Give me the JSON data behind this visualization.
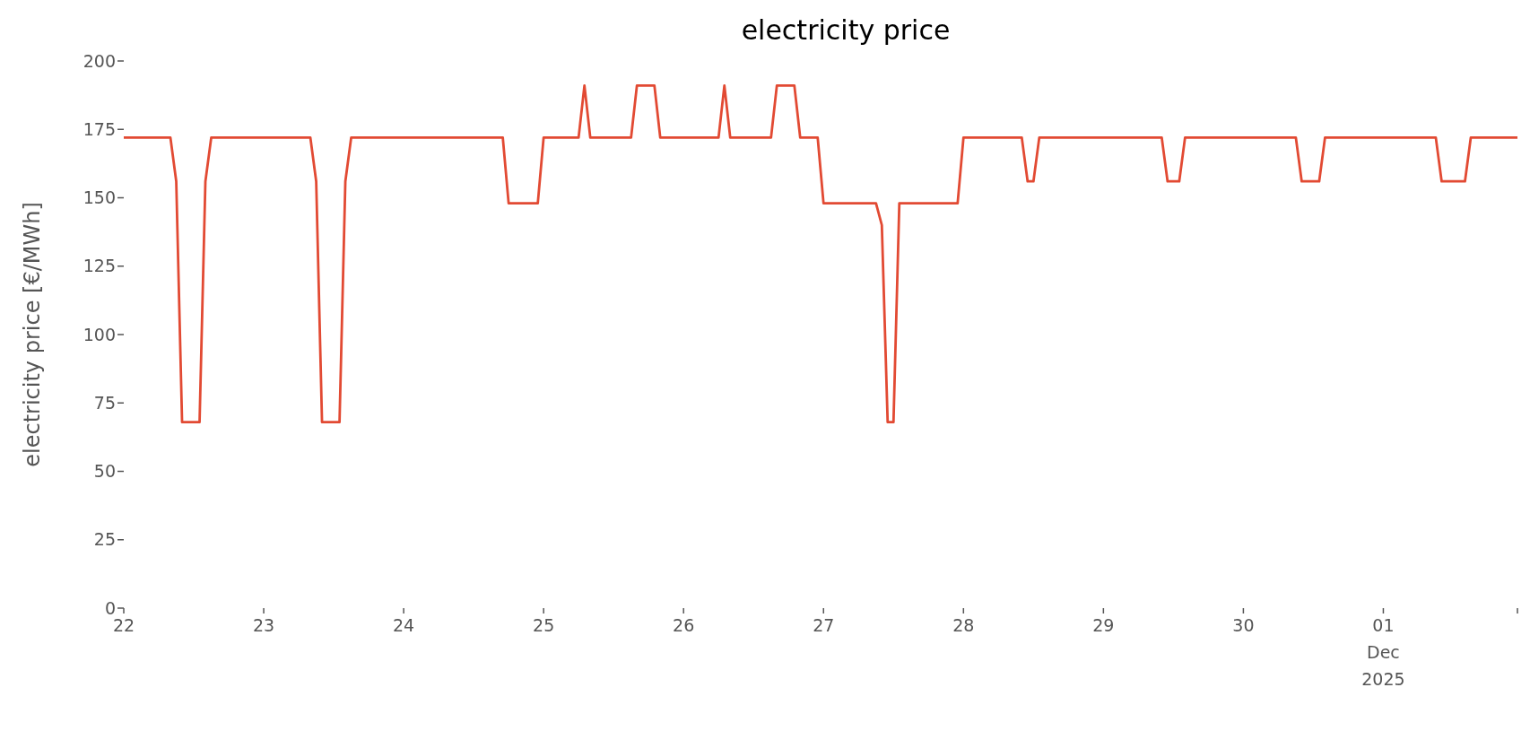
{
  "chart_data": {
    "type": "line",
    "title": "electricity price",
    "ylabel": "electricity price [€/MWh]",
    "x": [
      "2025-11-22T00:00",
      "2025-11-22T08:00",
      "2025-11-22T09:00",
      "2025-11-22T10:00",
      "2025-11-22T13:00",
      "2025-11-22T14:00",
      "2025-11-22T15:00",
      "2025-11-23T08:00",
      "2025-11-23T09:00",
      "2025-11-23T10:00",
      "2025-11-23T13:00",
      "2025-11-23T14:00",
      "2025-11-23T15:00",
      "2025-11-24T17:00",
      "2025-11-24T18:00",
      "2025-11-24T23:00",
      "2025-11-25T00:00",
      "2025-11-25T06:00",
      "2025-11-25T07:00",
      "2025-11-25T08:00",
      "2025-11-25T15:00",
      "2025-11-25T16:00",
      "2025-11-25T19:00",
      "2025-11-25T20:00",
      "2025-11-26T06:00",
      "2025-11-26T07:00",
      "2025-11-26T08:00",
      "2025-11-26T15:00",
      "2025-11-26T16:00",
      "2025-11-26T19:00",
      "2025-11-26T20:00",
      "2025-11-26T23:00",
      "2025-11-27T00:00",
      "2025-11-27T09:00",
      "2025-11-27T10:00",
      "2025-11-27T11:00",
      "2025-11-27T12:00",
      "2025-11-27T13:00",
      "2025-11-27T23:00",
      "2025-11-28T00:00",
      "2025-11-28T10:00",
      "2025-11-28T11:00",
      "2025-11-28T12:00",
      "2025-11-28T13:00",
      "2025-11-29T10:00",
      "2025-11-29T11:00",
      "2025-11-29T13:00",
      "2025-11-29T14:00",
      "2025-11-30T09:00",
      "2025-11-30T10:00",
      "2025-11-30T13:00",
      "2025-11-30T14:00",
      "2025-12-01T09:00",
      "2025-12-01T10:00",
      "2025-12-01T14:00",
      "2025-12-01T15:00",
      "2025-12-01T23:00"
    ],
    "series": [
      {
        "color": "#e24a33",
        "values": [
          172,
          172,
          156,
          68,
          68,
          156,
          172,
          172,
          156,
          68,
          68,
          156,
          172,
          172,
          148,
          148,
          172,
          172,
          191,
          172,
          172,
          191,
          191,
          172,
          172,
          191,
          172,
          172,
          191,
          191,
          172,
          172,
          148,
          148,
          140,
          68,
          68,
          148,
          148,
          172,
          172,
          156,
          156,
          172,
          172,
          156,
          156,
          172,
          172,
          156,
          156,
          172,
          172,
          156,
          156,
          172,
          172
        ]
      }
    ],
    "xlim": [
      "2025-11-22T00:00",
      "2025-12-01T23:00"
    ],
    "xticks": [
      {
        "value": "2025-11-22",
        "label": "22"
      },
      {
        "value": "2025-11-23",
        "label": "23"
      },
      {
        "value": "2025-11-24",
        "label": "24"
      },
      {
        "value": "2025-11-25",
        "label": "25"
      },
      {
        "value": "2025-11-26",
        "label": "26"
      },
      {
        "value": "2025-11-27",
        "label": "27"
      },
      {
        "value": "2025-11-28",
        "label": "28"
      },
      {
        "value": "2025-11-29",
        "label": "29"
      },
      {
        "value": "2025-11-30",
        "label": "30"
      },
      {
        "value": "2025-12-01",
        "label": "01\nDec\n2025"
      },
      {
        "value": "2025-12-01T23:00",
        "label": null
      }
    ],
    "ylim": [
      0,
      200
    ],
    "yticks": [
      0,
      25,
      50,
      75,
      100,
      125,
      150,
      175,
      200
    ],
    "grid": false,
    "legend": false,
    "marker": "none",
    "line_style": "solid"
  }
}
